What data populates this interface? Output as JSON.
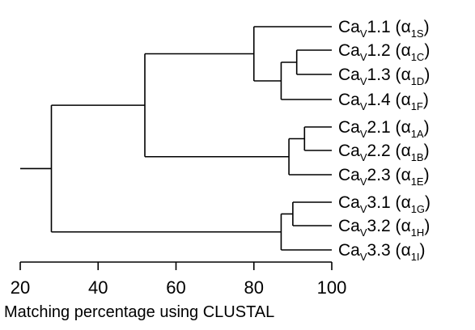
{
  "axis": {
    "ticks": [
      20,
      40,
      60,
      80,
      100
    ],
    "title": "Matching percentage using CLUSTAL"
  },
  "leaves": [
    {
      "main": "Ca",
      "sub_v": "V",
      "num": "1.1",
      "alpha": "α",
      "alpha_sub": "1S"
    },
    {
      "main": "Ca",
      "sub_v": "V",
      "num": "1.2",
      "alpha": "α",
      "alpha_sub": "1C"
    },
    {
      "main": "Ca",
      "sub_v": "V",
      "num": "1.3",
      "alpha": "α",
      "alpha_sub": "1D"
    },
    {
      "main": "Ca",
      "sub_v": "V",
      "num": "1.4",
      "alpha": "α",
      "alpha_sub": "1F"
    },
    {
      "main": "Ca",
      "sub_v": "V",
      "num": "2.1",
      "alpha": "α",
      "alpha_sub": "1A"
    },
    {
      "main": "Ca",
      "sub_v": "V",
      "num": "2.2",
      "alpha": "α",
      "alpha_sub": "1B"
    },
    {
      "main": "Ca",
      "sub_v": "V",
      "num": "2.3",
      "alpha": "α",
      "alpha_sub": "1E"
    },
    {
      "main": "Ca",
      "sub_v": "V",
      "num": "3.1",
      "alpha": "α",
      "alpha_sub": "1G"
    },
    {
      "main": "Ca",
      "sub_v": "V",
      "num": "3.2",
      "alpha": "α",
      "alpha_sub": "1H"
    },
    {
      "main": "Ca",
      "sub_v": "V",
      "num": "3.3",
      "alpha": "α",
      "alpha_sub": "1I"
    }
  ],
  "tree": {
    "root_merge": 28,
    "merges": [
      {
        "id": "a",
        "children": [
          1,
          2
        ],
        "value": 91
      },
      {
        "id": "b",
        "children": [
          "a",
          3
        ],
        "value": 87
      },
      {
        "id": "c",
        "children": [
          0,
          "b"
        ],
        "value": 80
      },
      {
        "id": "d",
        "children": [
          4,
          5
        ],
        "value": 93
      },
      {
        "id": "e",
        "children": [
          "d",
          6
        ],
        "value": 89
      },
      {
        "id": "f",
        "children": [
          "c",
          "e"
        ],
        "value": 52
      },
      {
        "id": "g",
        "children": [
          7,
          8
        ],
        "value": 90
      },
      {
        "id": "h",
        "children": [
          "g",
          9
        ],
        "value": 87
      },
      {
        "id": "root",
        "children": [
          "f",
          "h"
        ],
        "value": 28
      }
    ]
  }
}
